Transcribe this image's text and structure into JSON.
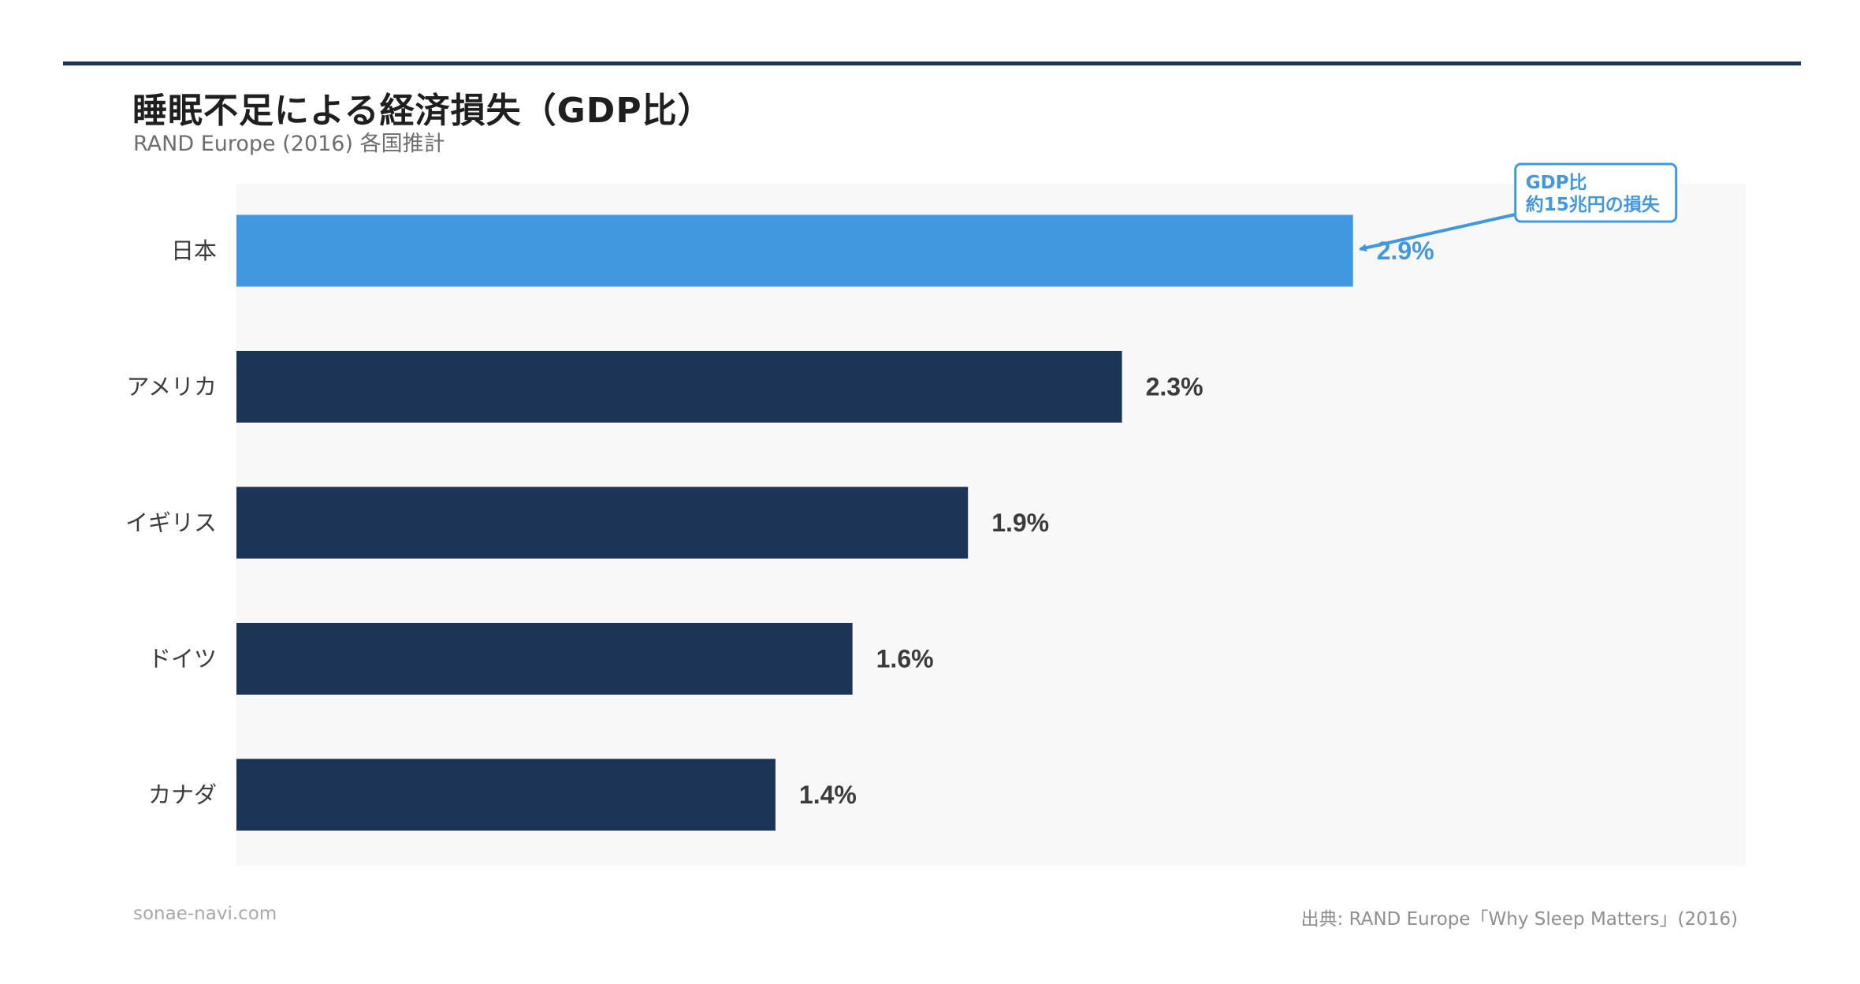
{
  "header": {
    "title": "睡眠不足による経済損失（GDP比）",
    "subtitle": "RAND Europe (2016) 各国推計"
  },
  "footer": {
    "site": "sonae-navi.com",
    "source": "出典: RAND Europe「Why Sleep Matters」(2016)"
  },
  "colors": {
    "accent": "#4298de",
    "bar": "#1c3557",
    "plot_bg": "#f8f8f8",
    "rule": "#1c3557"
  },
  "chart_data": {
    "type": "bar",
    "orientation": "horizontal",
    "title": "睡眠不足による経済損失（GDP比）",
    "subtitle": "RAND Europe (2016) 各国推計",
    "categories": [
      "日本",
      "アメリカ",
      "イギリス",
      "ドイツ",
      "カナダ"
    ],
    "values": [
      2.9,
      2.3,
      1.9,
      1.6,
      1.4
    ],
    "value_labels": [
      "2.9%",
      "2.3%",
      "1.9%",
      "1.6%",
      "1.4%"
    ],
    "highlight_index": 0,
    "xlim": [
      0,
      3.92
    ],
    "grid": false,
    "annotation": {
      "target": "日本",
      "lines": [
        "GDP比",
        "約15兆円の損失"
      ]
    }
  }
}
